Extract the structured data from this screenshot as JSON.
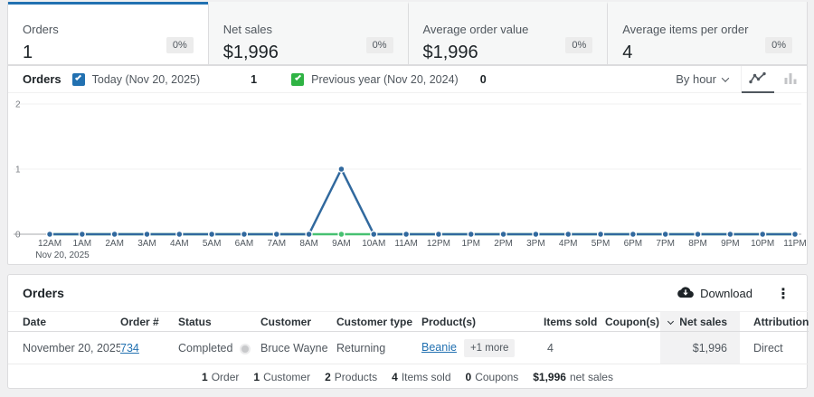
{
  "summary_cards": [
    {
      "label": "Orders",
      "value": "1",
      "delta": "0%",
      "selected": true
    },
    {
      "label": "Net sales",
      "value": "$1,996",
      "delta": "0%",
      "selected": false
    },
    {
      "label": "Average order value",
      "value": "$1,996",
      "delta": "0%",
      "selected": false
    },
    {
      "label": "Average items per order",
      "value": "4",
      "delta": "0%",
      "selected": false
    }
  ],
  "chart": {
    "title": "Orders",
    "legend": [
      {
        "label": "Today (Nov 20, 2025)",
        "value": "1",
        "color": "#31699e",
        "checkbox_color": "#2271b1"
      },
      {
        "label": "Previous year (Nov 20, 2024)",
        "value": "0",
        "color": "#47c171",
        "checkbox_color": "#2fb344"
      }
    ],
    "interval_label": "By hour",
    "chart_data": {
      "type": "line",
      "x": [
        "12AM",
        "1AM",
        "2AM",
        "3AM",
        "4AM",
        "5AM",
        "6AM",
        "7AM",
        "8AM",
        "9AM",
        "10AM",
        "11AM",
        "12PM",
        "1PM",
        "2PM",
        "3PM",
        "4PM",
        "5PM",
        "6PM",
        "7PM",
        "8PM",
        "9PM",
        "10PM",
        "11PM"
      ],
      "x_axis_date": "Nov 20, 2025",
      "series": [
        {
          "name": "Today (Nov 20, 2025)",
          "values": [
            0,
            0,
            0,
            0,
            0,
            0,
            0,
            0,
            0,
            1,
            0,
            0,
            0,
            0,
            0,
            0,
            0,
            0,
            0,
            0,
            0,
            0,
            0,
            0
          ]
        },
        {
          "name": "Previous year (Nov 20, 2024)",
          "values": [
            0,
            0,
            0,
            0,
            0,
            0,
            0,
            0,
            0,
            0,
            0,
            0,
            0,
            0,
            0,
            0,
            0,
            0,
            0,
            0,
            0,
            0,
            0,
            0
          ]
        }
      ],
      "ylim": [
        0,
        2
      ],
      "yticks": [
        0,
        1,
        2
      ],
      "grid": true,
      "legend_position": "top"
    }
  },
  "table": {
    "title": "Orders",
    "download_label": "Download",
    "kebab_glyph": "⋮",
    "columns": [
      "Date",
      "Order #",
      "Status",
      "Customer",
      "Customer type",
      "Product(s)",
      "Items sold",
      "Coupon(s)",
      "Net sales",
      "Attribution"
    ],
    "sorted_column": "Net sales",
    "rows": [
      {
        "date": "November 20, 2025",
        "order_number": "734",
        "status": "Completed",
        "customer": "Bruce Wayne",
        "customer_type": "Returning",
        "product": "Beanie",
        "product_more": "+1 more",
        "items_sold": "4",
        "coupons": "",
        "net_sales": "$1,996",
        "attribution": "Direct"
      }
    ],
    "summary": [
      {
        "value": "1",
        "label": "Order"
      },
      {
        "value": "1",
        "label": "Customer"
      },
      {
        "value": "2",
        "label": "Products"
      },
      {
        "value": "4",
        "label": "Items sold"
      },
      {
        "value": "0",
        "label": "Coupons"
      },
      {
        "value": "$1,996",
        "label": "net sales"
      }
    ]
  }
}
